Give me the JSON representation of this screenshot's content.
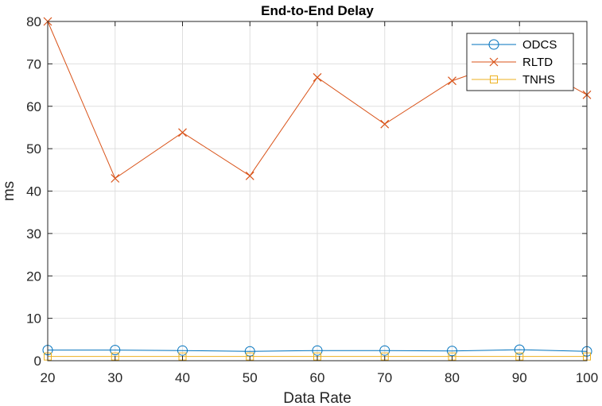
{
  "chart_data": {
    "type": "line",
    "title": "End-to-End Delay",
    "xlabel": "Data Rate",
    "ylabel": "ms",
    "x": [
      20,
      30,
      40,
      50,
      60,
      70,
      80,
      90,
      100
    ],
    "xlim": [
      20,
      100
    ],
    "ylim": [
      0,
      80
    ],
    "xticks": [
      20,
      30,
      40,
      50,
      60,
      70,
      80,
      90,
      100
    ],
    "yticks": [
      0,
      10,
      20,
      30,
      40,
      50,
      60,
      70,
      80
    ],
    "grid": true,
    "legend_position": "top-right",
    "series": [
      {
        "name": "ODCS",
        "color": "#0072BD",
        "marker": "circle",
        "values": [
          2.5,
          2.5,
          2.4,
          2.2,
          2.4,
          2.4,
          2.3,
          2.6,
          2.2
        ]
      },
      {
        "name": "RLTD",
        "color": "#D95319",
        "marker": "x",
        "values": [
          80.0,
          43.0,
          53.8,
          43.6,
          66.8,
          55.8,
          66.0,
          71.5,
          62.7
        ]
      },
      {
        "name": "TNHS",
        "color": "#EDB120",
        "marker": "square",
        "values": [
          1.0,
          1.0,
          1.0,
          1.0,
          1.0,
          1.0,
          1.0,
          1.0,
          1.0
        ]
      }
    ]
  }
}
